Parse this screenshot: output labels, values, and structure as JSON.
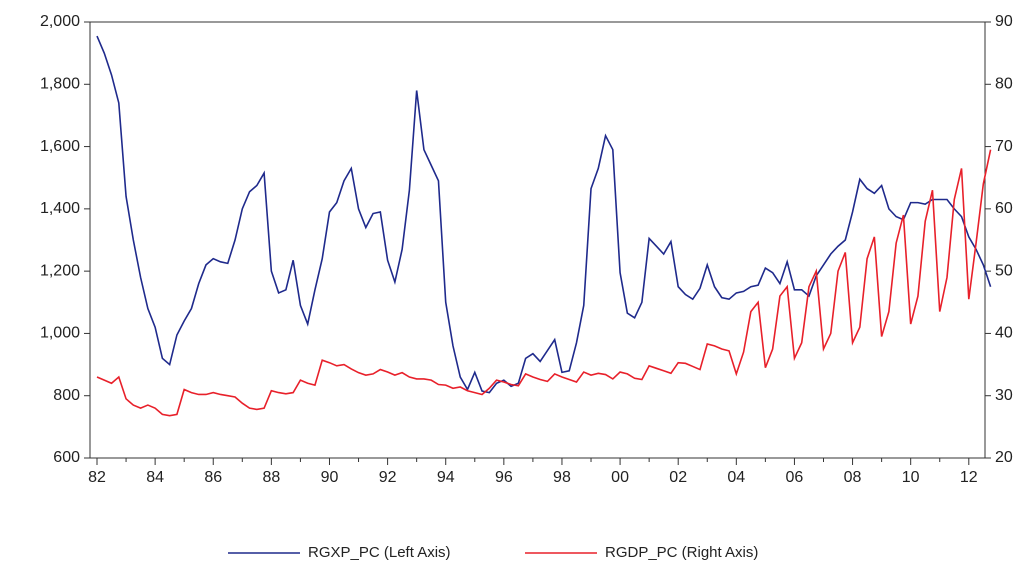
{
  "chart_data": {
    "type": "line",
    "categories": [
      "82",
      null,
      null,
      null,
      null,
      null,
      null,
      null,
      "84",
      null,
      null,
      null,
      null,
      null,
      null,
      null,
      "86",
      null,
      null,
      null,
      null,
      null,
      null,
      null,
      "88",
      null,
      null,
      null,
      null,
      null,
      null,
      null,
      "90",
      null,
      null,
      null,
      null,
      null,
      null,
      null,
      "92",
      null,
      null,
      null,
      null,
      null,
      null,
      null,
      "94",
      null,
      null,
      null,
      null,
      null,
      null,
      null,
      "96",
      null,
      null,
      null,
      null,
      null,
      null,
      null,
      "98",
      null,
      null,
      null,
      null,
      null,
      null,
      null,
      "00",
      null,
      null,
      null,
      null,
      null,
      null,
      null,
      "02",
      null,
      null,
      null,
      null,
      null,
      null,
      null,
      "04",
      null,
      null,
      null,
      null,
      null,
      null,
      null,
      "06",
      null,
      null,
      null,
      null,
      null,
      null,
      null,
      "08",
      null,
      null,
      null,
      null,
      null,
      null,
      null,
      "10",
      null,
      null,
      null,
      null,
      null,
      null,
      null,
      "12",
      null,
      null,
      null
    ],
    "series": [
      {
        "name": "RGXP_PC (Left Axis)",
        "color": "#1f2a8c",
        "axis": "y",
        "values": [
          1955,
          1900,
          1830,
          1740,
          1440,
          1300,
          1180,
          1080,
          1020,
          920,
          900,
          995,
          1040,
          1080,
          1160,
          1220,
          1240,
          1230,
          1225,
          1300,
          1400,
          1455,
          1475,
          1515,
          1200,
          1130,
          1140,
          1235,
          1090,
          1030,
          1140,
          1240,
          1390,
          1420,
          1490,
          1530,
          1400,
          1340,
          1385,
          1390,
          1235,
          1165,
          1270,
          1460,
          1780,
          1590,
          1540,
          1490,
          1100,
          960,
          860,
          820,
          875,
          815,
          810,
          840,
          850,
          830,
          840,
          920,
          935,
          910,
          945,
          980,
          875,
          880,
          970,
          1090,
          1465,
          1530,
          1635,
          1590,
          1195,
          1065,
          1050,
          1100,
          1305,
          1280,
          1255,
          1295,
          1150,
          1125,
          1110,
          1145,
          1220,
          1150,
          1115,
          1110,
          1130,
          1135,
          1150,
          1155,
          1210,
          1195,
          1160,
          1230,
          1140,
          1140,
          1120,
          1185,
          1220,
          1255,
          1280,
          1300,
          1390,
          1495,
          1465,
          1450,
          1475,
          1400,
          1375,
          1365,
          1420,
          1420,
          1415,
          1430,
          1430,
          1430,
          1400,
          1375,
          1310,
          1270,
          1220,
          1150
        ]
      },
      {
        "name": "RGDP_PC (Right Axis)",
        "color": "#e8202a",
        "axis": "y2",
        "values": [
          33,
          32.5,
          32,
          33,
          29.5,
          28.5,
          28,
          28.5,
          28,
          27,
          26.8,
          27,
          31,
          30.5,
          30.2,
          30.2,
          30.5,
          30.2,
          30,
          29.8,
          28.8,
          28,
          27.8,
          28,
          30.8,
          30.5,
          30.3,
          30.5,
          32.5,
          32,
          31.7,
          35.7,
          35.3,
          34.8,
          35,
          34.3,
          33.7,
          33.3,
          33.5,
          34.2,
          33.8,
          33.3,
          33.7,
          33,
          32.7,
          32.7,
          32.5,
          31.8,
          31.7,
          31.2,
          31.4,
          30.8,
          30.5,
          30.2,
          31.2,
          32.5,
          32.2,
          31.8,
          31.6,
          33.5,
          33,
          32.6,
          32.3,
          33.5,
          33,
          32.6,
          32.2,
          33.8,
          33.3,
          33.6,
          33.4,
          32.7,
          33.8,
          33.5,
          32.8,
          32.6,
          34.8,
          34.4,
          34,
          33.6,
          35.3,
          35.2,
          34.7,
          34.2,
          38.3,
          38,
          37.5,
          37.2,
          33.5,
          37,
          43.5,
          45,
          34.5,
          37.5,
          46,
          47.5,
          36,
          38.5,
          47.5,
          50,
          37.5,
          40,
          50,
          53,
          38.5,
          41,
          52,
          55.5,
          39.5,
          43.5,
          54.5,
          59,
          41.5,
          46,
          58,
          63,
          43.5,
          49,
          61.5,
          66.5,
          45.5,
          54.5,
          64,
          69.5
        ]
      }
    ],
    "ylim": [
      600,
      2000
    ],
    "yticks": [
      600,
      800,
      {
        "value": 1000,
        "label": "1,000"
      },
      {
        "value": 1200,
        "label": "1,200"
      },
      {
        "value": 1400,
        "label": "1,400"
      },
      {
        "value": 1600,
        "label": "1,600"
      },
      {
        "value": 1800,
        "label": "1,800"
      },
      {
        "value": 2000,
        "label": "2,000"
      }
    ],
    "y2lim": [
      20,
      90
    ],
    "y2ticks": [
      20,
      30,
      40,
      50,
      60,
      70,
      80,
      90
    ],
    "grid": false,
    "legend": "bottom"
  }
}
